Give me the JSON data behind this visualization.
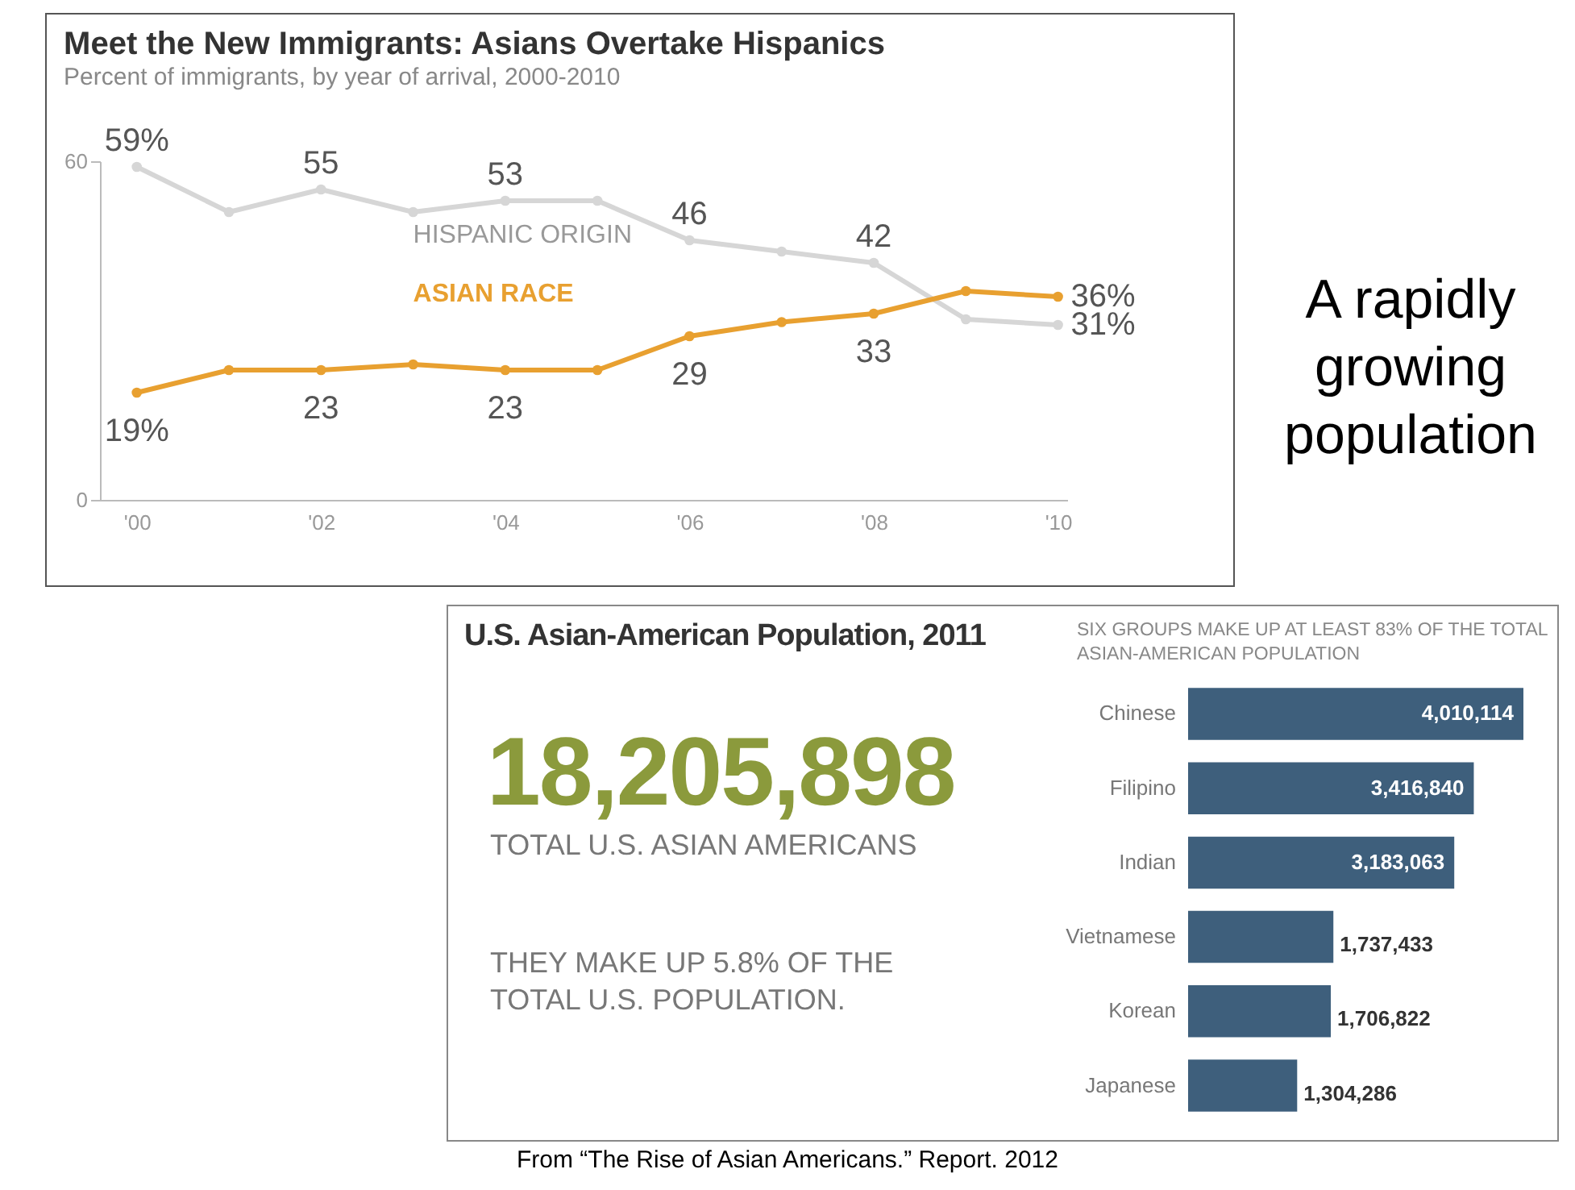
{
  "chart_data": [
    {
      "type": "line",
      "title": "Meet the New Immigrants: Asians Overtake Hispanics",
      "subtitle": "Percent of immigrants, by year of arrival, 2000-2010",
      "x": [
        2000,
        2001,
        2002,
        2003,
        2004,
        2005,
        2006,
        2007,
        2008,
        2009,
        2010
      ],
      "series": [
        {
          "name": "HISPANIC ORIGIN",
          "color": "#d6d6d6",
          "values": [
            59,
            51,
            55,
            51,
            53,
            53,
            46,
            44,
            42,
            32,
            31
          ],
          "value_labels": [
            "59%",
            null,
            "55",
            null,
            "53",
            null,
            "46",
            null,
            "42",
            null,
            "31%"
          ]
        },
        {
          "name": "ASIAN RACE",
          "color": "#e8a030",
          "values": [
            19,
            23,
            23,
            24,
            23,
            23,
            29,
            31.5,
            33,
            37,
            36
          ],
          "value_labels": [
            "19%",
            null,
            "23",
            null,
            "23",
            null,
            "29",
            null,
            "33",
            null,
            "36%"
          ]
        }
      ],
      "xlim": [
        1999.6,
        2010.1
      ],
      "xticks": [
        {
          "value": 2000,
          "label": "'00"
        },
        {
          "value": 2002,
          "label": "'02"
        },
        {
          "value": 2004,
          "label": "'04"
        },
        {
          "value": 2006,
          "label": "'06"
        },
        {
          "value": 2008,
          "label": "'08"
        },
        {
          "value": 2010,
          "label": "'10"
        }
      ],
      "ylim": [
        0,
        60
      ],
      "yticks": [
        0,
        60
      ],
      "marker": "circle",
      "legend": false,
      "grid": false,
      "annotations": [
        "A rapidly growing population",
        "From “The Rise of Asian Americans.”  Report. 2012"
      ]
    },
    {
      "type": "other",
      "title": "U.S. Asian-American Population, 2011",
      "annotations": [
        "18,205,898",
        "TOTAL U.S. ASIAN AMERICANS",
        "THEY MAKE UP 5.8% OF THE TOTAL U.S. POPULATION."
      ]
    },
    {
      "type": "bar",
      "orientation": "horizontal",
      "title": "SIX GROUPS MAKE UP AT LEAST 83% OF THE TOTAL ASIAN-AMERICAN POPULATION",
      "categories": [
        "Chinese",
        "Filipino",
        "Indian",
        "Vietnamese",
        "Korean",
        "Japanese"
      ],
      "values": [
        4010114,
        3416840,
        3183063,
        1737433,
        1706822,
        1304286
      ],
      "value_labels": [
        "4,010,114",
        "3,416,840",
        "3,183,063",
        "1,737,433",
        "1,706,822",
        "1,304,286"
      ],
      "color": "#3e5f7c"
    }
  ]
}
